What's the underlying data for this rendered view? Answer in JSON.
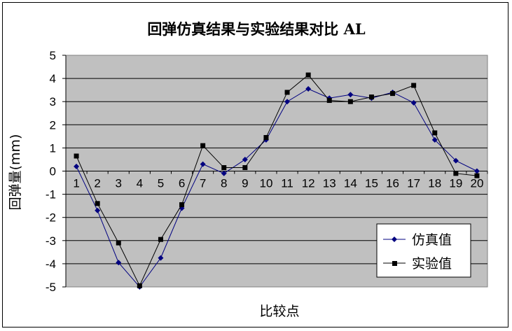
{
  "chart_data": {
    "type": "line",
    "title": "回弹仿真结果与实验结果对比 AL",
    "xlabel": "比较点",
    "ylabel": "回弹量(mm)",
    "categories": [
      "1",
      "2",
      "3",
      "4",
      "5",
      "6",
      "7",
      "8",
      "9",
      "10",
      "11",
      "12",
      "13",
      "14",
      "15",
      "16",
      "17",
      "18",
      "19",
      "20"
    ],
    "y_ticks": [
      "5",
      "4",
      "3",
      "2",
      "1",
      "0",
      "-1",
      "-2",
      "-3",
      "-4",
      "-5"
    ],
    "ylim": [
      -5,
      5
    ],
    "grid": "horizontal",
    "legend_position": "bottom-right",
    "plot_background": "#c0c0c0",
    "series": [
      {
        "name": "仿真值",
        "color": "#000080",
        "marker": "diamond",
        "values": [
          0.2,
          -1.7,
          -3.95,
          -5.0,
          -3.75,
          -1.6,
          0.3,
          -0.1,
          0.5,
          1.35,
          3.0,
          3.55,
          3.15,
          3.3,
          3.15,
          3.4,
          2.95,
          1.35,
          0.45,
          0.0
        ]
      },
      {
        "name": "实验值",
        "color": "#000000",
        "marker": "square",
        "values": [
          0.65,
          -1.4,
          -3.1,
          -4.95,
          -2.95,
          -1.45,
          1.1,
          0.15,
          0.15,
          1.45,
          3.4,
          4.15,
          3.05,
          3.0,
          3.2,
          3.35,
          3.7,
          1.65,
          -0.1,
          -0.2
        ]
      }
    ]
  }
}
